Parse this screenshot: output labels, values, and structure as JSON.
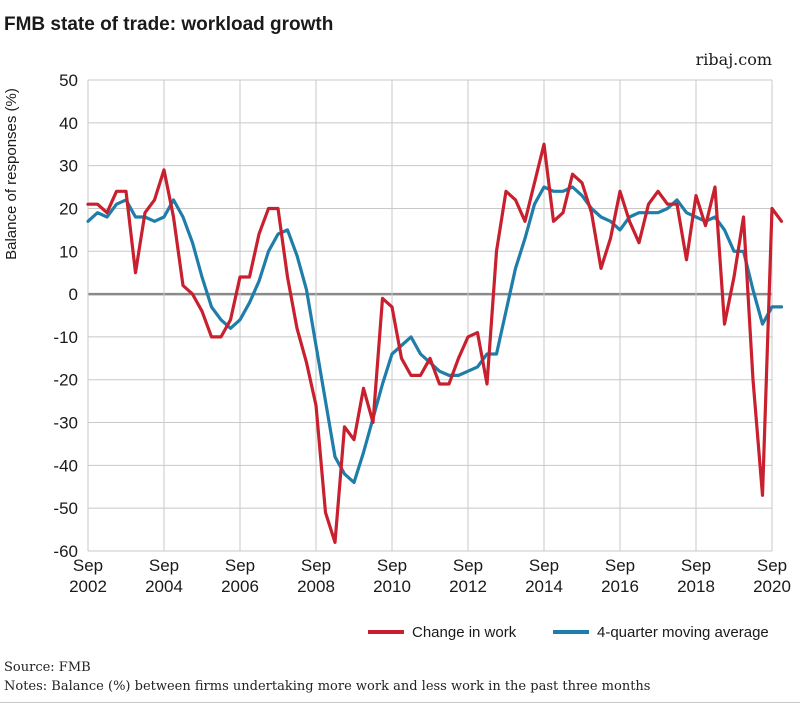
{
  "header": {
    "title": "FMB state of trade: workload growth",
    "brand": "ribaj.com"
  },
  "footer": {
    "source": "Source: FMB",
    "notes": "Notes: Balance (%) between firms undertaking more work and less work in the past three months"
  },
  "colors": {
    "change": "#c8202e",
    "average": "#1f7ea9",
    "grid": "#c8c8c8",
    "zero": "#8a8a8a"
  },
  "chart_data": {
    "type": "line",
    "title": "FMB state of trade: workload growth",
    "ylabel": "Balance of responses (%)",
    "ylim": [
      -60,
      50
    ],
    "yticks": [
      50,
      40,
      30,
      20,
      10,
      0,
      -10,
      -20,
      -30,
      -40,
      -50,
      -60
    ],
    "xlim": [
      2002.75,
      2020.75
    ],
    "xticks": [
      {
        "x": 2002.75,
        "month": "Sep",
        "year": "2002"
      },
      {
        "x": 2004.75,
        "month": "Sep",
        "year": "2004"
      },
      {
        "x": 2006.75,
        "month": "Sep",
        "year": "2006"
      },
      {
        "x": 2008.75,
        "month": "Sep",
        "year": "2008"
      },
      {
        "x": 2010.75,
        "month": "Sep",
        "year": "2010"
      },
      {
        "x": 2012.75,
        "month": "Sep",
        "year": "2012"
      },
      {
        "x": 2014.75,
        "month": "Sep",
        "year": "2014"
      },
      {
        "x": 2016.75,
        "month": "Sep",
        "year": "2016"
      },
      {
        "x": 2018.75,
        "month": "Sep",
        "year": "2018"
      },
      {
        "x": 2020.75,
        "month": "Sep",
        "year": "2020"
      }
    ],
    "x_step": 0.25,
    "x_start": 2002.75,
    "grid": true,
    "legend": "bottom-right",
    "series": [
      {
        "name": "Change in work",
        "color": "#c8202e",
        "values": [
          21,
          21,
          19,
          24,
          24,
          5,
          19,
          22,
          29,
          18,
          2,
          0,
          -4,
          -10,
          -10,
          -6,
          4,
          4,
          14,
          20,
          20,
          4,
          -8,
          -16,
          -26,
          -51,
          -58,
          -31,
          -34,
          -22,
          -30,
          -1,
          -3,
          -15,
          -19,
          -19,
          -15,
          -21,
          -21,
          -15,
          -10,
          -9,
          -21,
          10,
          24,
          22,
          17,
          26,
          35,
          17,
          19,
          28,
          26,
          19,
          6,
          13,
          24,
          17,
          12,
          21,
          24,
          21,
          21,
          8,
          23,
          16,
          25,
          -7,
          4,
          18,
          -20,
          -47,
          20,
          17
        ]
      },
      {
        "name": "4-quarter moving average",
        "color": "#1f7ea9",
        "values": [
          17,
          19,
          18,
          21,
          22,
          18,
          18,
          17,
          18,
          22,
          18,
          12,
          4,
          -3,
          -6,
          -8,
          -6,
          -2,
          3,
          10,
          14,
          15,
          9,
          1,
          -12,
          -25,
          -38,
          -42,
          -44,
          -37,
          -29,
          -21,
          -14,
          -12,
          -10,
          -14,
          -16,
          -18,
          -19,
          -19,
          -18,
          -17,
          -14,
          -14,
          -4,
          6,
          13,
          21,
          25,
          24,
          24,
          25,
          23,
          20,
          18,
          17,
          15,
          18,
          19,
          19,
          19,
          20,
          22,
          19,
          18,
          17,
          18,
          15,
          10,
          10,
          1,
          -7,
          -3,
          -3
        ]
      }
    ]
  }
}
